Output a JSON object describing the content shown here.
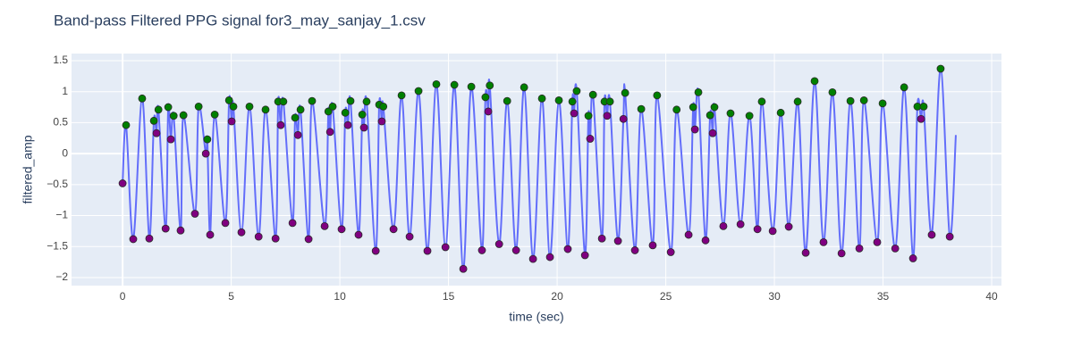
{
  "chart_data": {
    "type": "line",
    "title": "Band-pass Filtered PPG signal for3_may_sanjay_1.csv",
    "x_label": "time (sec)",
    "y_label": "filtered_amp",
    "xlim": [
      -2.35,
      40.45
    ],
    "ylim": [
      -2.13,
      1.615
    ],
    "xticks": [
      0,
      5,
      10,
      15,
      20,
      25,
      30,
      35,
      40
    ],
    "yticks": [
      {
        "value": -2,
        "label": "−2"
      },
      {
        "value": -1.5,
        "label": "−1.5"
      },
      {
        "value": -1,
        "label": "−1"
      },
      {
        "value": -0.5,
        "label": "−0.5"
      },
      0,
      0.5,
      1,
      1.5
    ],
    "grid": true,
    "series": [
      {
        "type": "line",
        "color": "#636efa",
        "x": [
          0,
          0.16,
          0.49,
          0.9,
          1.23,
          1.44,
          1.56,
          1.65,
          1.98,
          2.1,
          2.22,
          2.35,
          2.67,
          2.8,
          3.33,
          3.5,
          3.83,
          3.9,
          4.03,
          4.24,
          4.73,
          4.9,
          5.02,
          5.1,
          5.47,
          5.84,
          6.26,
          6.58,
          7.04,
          7.16,
          7.28,
          7.4,
          7.82,
          7.94,
          8.07,
          8.19,
          8.56,
          8.72,
          9.3,
          9.47,
          9.55,
          9.67,
          10.08,
          10.25,
          10.37,
          10.49,
          10.86,
          11.03,
          11.11,
          11.23,
          11.65,
          11.81,
          11.93,
          12,
          12.47,
          12.84,
          13.21,
          13.62,
          14.03,
          14.44,
          14.86,
          15.27,
          15.68,
          16.05,
          16.54,
          16.7,
          16.83,
          16.9,
          17.33,
          17.7,
          18.11,
          18.48,
          18.89,
          19.3,
          19.67,
          20.08,
          20.49,
          20.7,
          20.78,
          20.9,
          21.28,
          21.44,
          21.52,
          21.65,
          22.06,
          22.18,
          22.3,
          22.43,
          22.8,
          23.05,
          23.13,
          23.58,
          23.87,
          24.4,
          24.6,
          25.23,
          25.5,
          26.05,
          26.26,
          26.34,
          26.5,
          26.83,
          27.04,
          27.16,
          27.24,
          27.65,
          27.98,
          28.44,
          28.85,
          29.22,
          29.42,
          29.92,
          30.29,
          30.66,
          31.07,
          31.44,
          31.85,
          32.26,
          32.67,
          33.09,
          33.5,
          33.91,
          34.12,
          34.73,
          34.98,
          35.56,
          35.97,
          36.38,
          36.58,
          36.75,
          36.87,
          37.24,
          37.65,
          38.07,
          38.35
        ],
        "values": [
          -0.48,
          0.46,
          -1.38,
          0.89,
          -1.37,
          0.53,
          0.33,
          0.71,
          -1.21,
          0.75,
          0.23,
          0.61,
          -1.24,
          0.62,
          -0.97,
          0.76,
          0,
          0.23,
          -1.31,
          0.63,
          -1.12,
          0.86,
          0.52,
          0.76,
          -1.27,
          0.76,
          -1.34,
          0.71,
          -1.37,
          0.84,
          0.46,
          0.84,
          -1.12,
          0.58,
          0.3,
          0.71,
          -1.38,
          0.85,
          -1.17,
          0.68,
          0.35,
          0.76,
          -1.22,
          0.66,
          0.46,
          0.85,
          -1.31,
          0.63,
          0.42,
          0.84,
          -1.57,
          0.79,
          0.52,
          0.76,
          -1.22,
          0.94,
          -1.34,
          1.01,
          -1.57,
          1.12,
          -1.51,
          1.11,
          -1.86,
          1.08,
          -1.56,
          0.91,
          0.68,
          1.1,
          -1.46,
          0.85,
          -1.56,
          1.07,
          -1.7,
          0.89,
          -1.67,
          0.86,
          -1.54,
          0.84,
          0.65,
          1.01,
          -1.64,
          0.61,
          0.24,
          0.95,
          -1.37,
          0.84,
          0.61,
          0.84,
          -1.41,
          0.56,
          0.98,
          -1.56,
          0.72,
          -1.48,
          0.94,
          -1.59,
          0.71,
          -1.31,
          0.75,
          0.39,
          0.99,
          -1.4,
          0.62,
          0.33,
          0.75,
          -1.17,
          0.65,
          -1.14,
          0.61,
          -1.22,
          0.84,
          -1.25,
          0.66,
          -1.18,
          0.84,
          -1.6,
          1.17,
          -1.43,
          0.99,
          -1.61,
          0.85,
          -1.53,
          0.86,
          -1.43,
          0.81,
          -1.53,
          1.07,
          -1.69,
          0.76,
          0.56,
          0.76,
          -1.31,
          1.37,
          -1.34,
          0.3
        ]
      },
      {
        "type": "scatter",
        "color": "#008000",
        "x": [
          0.16,
          0.9,
          1.44,
          1.65,
          2.1,
          2.35,
          2.8,
          3.5,
          3.9,
          4.24,
          4.9,
          5.1,
          5.84,
          6.58,
          7.16,
          7.4,
          7.94,
          8.19,
          8.72,
          9.47,
          9.67,
          10.25,
          10.49,
          11.03,
          11.23,
          11.81,
          12,
          12.84,
          13.62,
          14.44,
          15.27,
          16.05,
          16.7,
          16.9,
          17.7,
          18.48,
          19.3,
          20.08,
          20.7,
          20.9,
          21.44,
          21.65,
          22.18,
          22.43,
          23.13,
          23.87,
          24.6,
          25.5,
          26.26,
          26.5,
          27.04,
          27.24,
          27.98,
          28.85,
          29.42,
          30.29,
          31.07,
          31.85,
          32.67,
          33.5,
          34.12,
          34.98,
          35.97,
          36.58,
          36.87,
          37.65
        ],
        "values": [
          0.46,
          0.89,
          0.53,
          0.71,
          0.75,
          0.61,
          0.62,
          0.76,
          0.23,
          0.63,
          0.86,
          0.76,
          0.76,
          0.71,
          0.84,
          0.84,
          0.58,
          0.71,
          0.85,
          0.68,
          0.76,
          0.66,
          0.85,
          0.63,
          0.84,
          0.79,
          0.76,
          0.94,
          1.01,
          1.12,
          1.11,
          1.08,
          0.91,
          1.1,
          0.85,
          1.07,
          0.89,
          0.86,
          0.84,
          1.01,
          0.61,
          0.95,
          0.84,
          0.84,
          0.98,
          0.72,
          0.94,
          0.71,
          0.75,
          0.99,
          0.62,
          0.75,
          0.65,
          0.61,
          0.84,
          0.66,
          0.84,
          1.17,
          0.99,
          0.85,
          0.86,
          0.81,
          1.07,
          0.76,
          0.76,
          1.37
        ]
      },
      {
        "type": "scatter",
        "color": "#800080",
        "x": [
          0,
          0.49,
          1.23,
          1.56,
          1.98,
          2.22,
          2.67,
          3.33,
          3.83,
          4.03,
          4.73,
          5.02,
          5.47,
          6.26,
          7.04,
          7.28,
          7.82,
          8.07,
          8.56,
          9.3,
          9.55,
          10.08,
          10.37,
          10.86,
          11.11,
          11.65,
          11.93,
          12.47,
          13.21,
          14.03,
          14.86,
          15.68,
          16.54,
          16.83,
          17.33,
          18.11,
          18.89,
          19.67,
          20.49,
          20.78,
          21.28,
          21.52,
          22.06,
          22.3,
          22.8,
          23.05,
          23.58,
          24.4,
          25.23,
          26.05,
          26.34,
          26.83,
          27.16,
          27.65,
          28.44,
          29.22,
          29.92,
          30.66,
          31.44,
          32.26,
          33.09,
          33.91,
          34.73,
          35.56,
          36.38,
          36.75,
          37.24,
          38.07
        ],
        "values": [
          -0.48,
          -1.38,
          -1.37,
          0.33,
          -1.21,
          0.23,
          -1.24,
          -0.97,
          0,
          -1.31,
          -1.12,
          0.52,
          -1.27,
          -1.34,
          -1.37,
          0.46,
          -1.12,
          0.3,
          -1.38,
          -1.17,
          0.35,
          -1.22,
          0.46,
          -1.31,
          0.42,
          -1.57,
          0.52,
          -1.22,
          -1.34,
          -1.57,
          -1.51,
          -1.86,
          -1.56,
          0.68,
          -1.46,
          -1.56,
          -1.7,
          -1.67,
          -1.54,
          0.65,
          -1.64,
          0.24,
          -1.37,
          0.61,
          -1.41,
          0.56,
          -1.56,
          -1.48,
          -1.59,
          -1.31,
          0.39,
          -1.4,
          0.33,
          -1.17,
          -1.14,
          -1.22,
          -1.25,
          -1.18,
          -1.6,
          -1.43,
          -1.61,
          -1.53,
          -1.43,
          -1.53,
          -1.69,
          0.56,
          -1.31,
          -1.34
        ]
      }
    ]
  }
}
